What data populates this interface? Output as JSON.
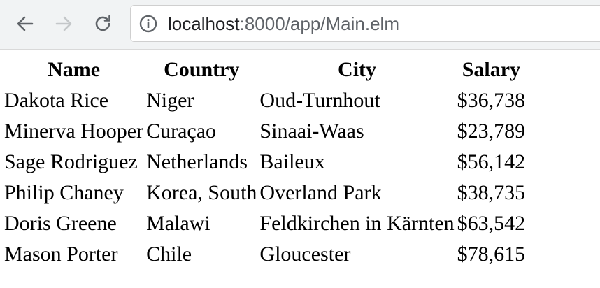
{
  "browser": {
    "url_host": "localhost",
    "url_rest": ":8000/app/Main.elm",
    "icons": {
      "back": "arrow-left-icon",
      "forward": "arrow-right-icon",
      "reload": "reload-icon",
      "info": "info-icon"
    }
  },
  "table": {
    "headers": [
      "Name",
      "Country",
      "City",
      "Salary"
    ],
    "rows": [
      [
        "Dakota Rice",
        "Niger",
        "Oud-Turnhout",
        "$36,738"
      ],
      [
        "Minerva Hooper",
        "Curaçao",
        "Sinaai-Waas",
        "$23,789"
      ],
      [
        "Sage Rodriguez",
        "Netherlands",
        "Baileux",
        "$56,142"
      ],
      [
        "Philip Chaney",
        "Korea, South",
        "Overland Park",
        "$38,735"
      ],
      [
        "Doris Greene",
        "Malawi",
        "Feldkirchen in Kärnten",
        "$63,542"
      ],
      [
        "Mason Porter",
        "Chile",
        "Gloucester",
        "$78,615"
      ]
    ]
  }
}
